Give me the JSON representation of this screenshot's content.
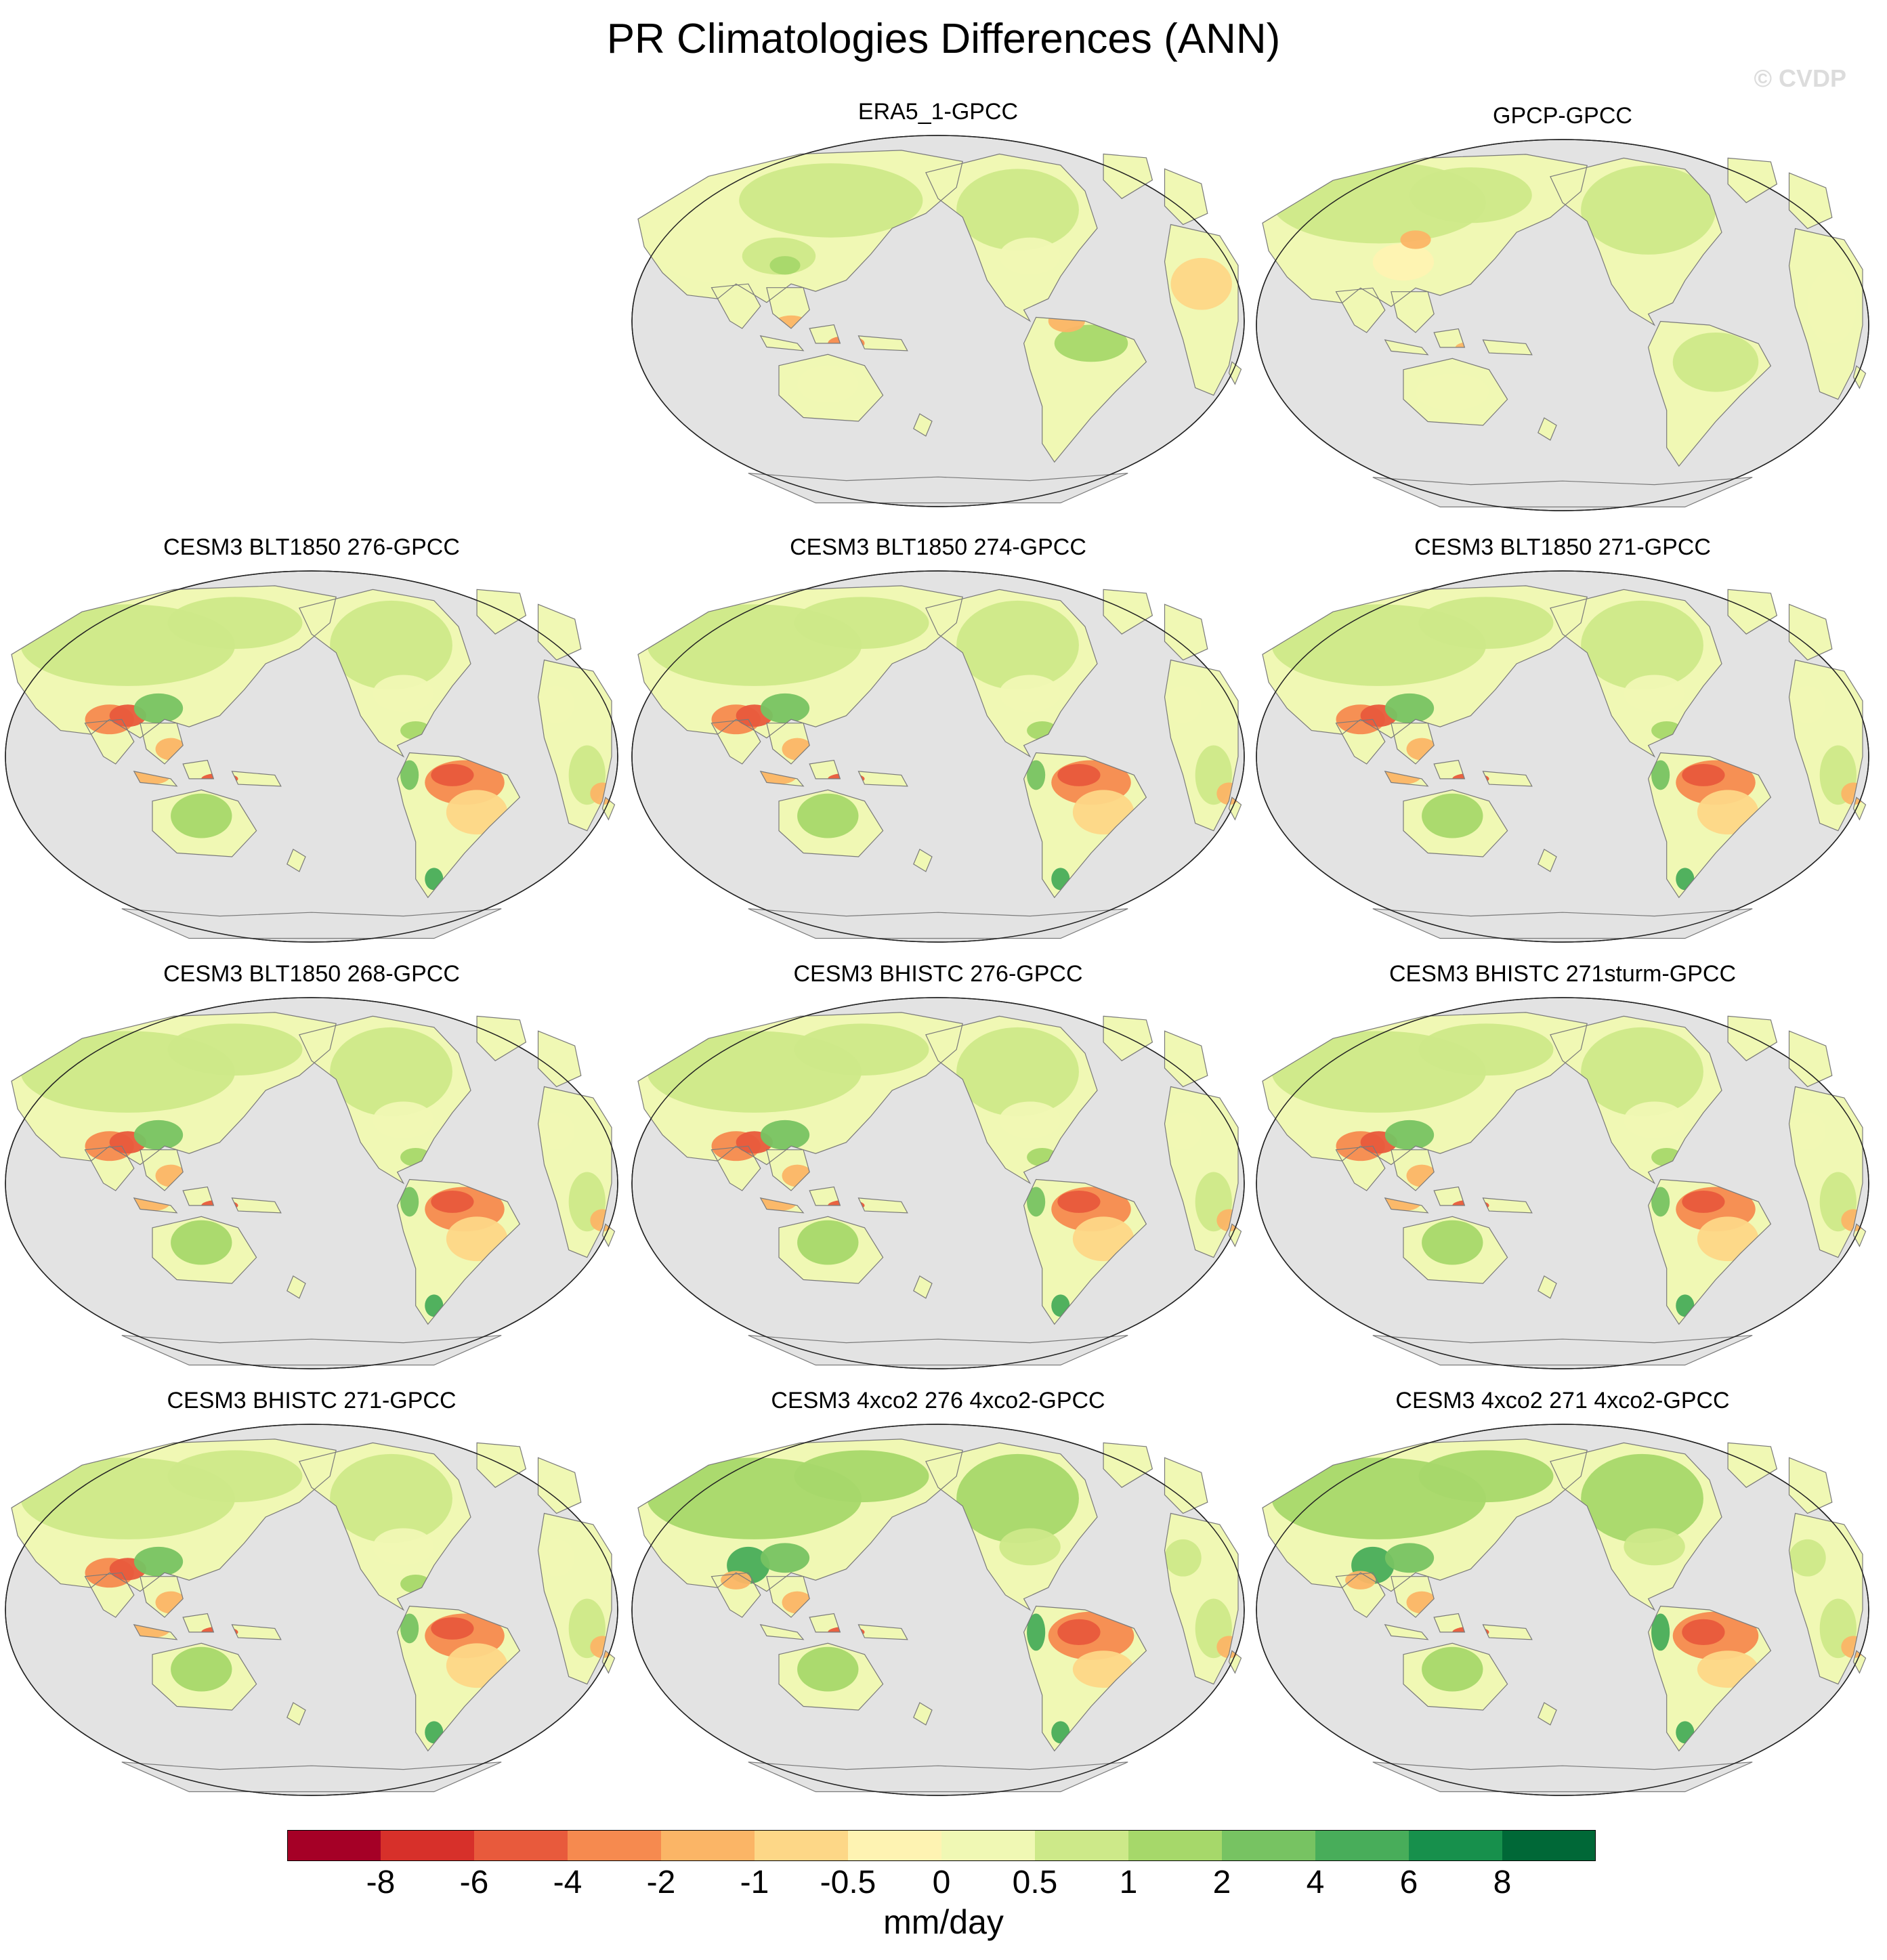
{
  "figure": {
    "title": "PR Climatologies Differences (ANN)",
    "watermark": "© CVDP"
  },
  "panels": [
    {
      "title": "ERA5_1-GPCC",
      "pattern": "era5"
    },
    {
      "title": "GPCP-GPCC",
      "pattern": "gpcp"
    },
    {
      "title": "CESM3 BLT1850 276-GPCC",
      "pattern": "model"
    },
    {
      "title": "CESM3 BLT1850 274-GPCC",
      "pattern": "model"
    },
    {
      "title": "CESM3 BLT1850 271-GPCC",
      "pattern": "model"
    },
    {
      "title": "CESM3 BLT1850 268-GPCC",
      "pattern": "model"
    },
    {
      "title": "CESM3 BHISTC 276-GPCC",
      "pattern": "model"
    },
    {
      "title": "CESM3 BHISTC 271sturm-GPCC",
      "pattern": "model"
    },
    {
      "title": "CESM3 BHISTC 271-GPCC",
      "pattern": "model"
    },
    {
      "title": "CESM3 4xco2 276 4xco2-GPCC",
      "pattern": "model4x"
    },
    {
      "title": "CESM3 4xco2 271 4xco2-GPCC",
      "pattern": "model4x"
    }
  ],
  "colorbar": {
    "unit": "mm/day",
    "tick_labels": [
      "-8",
      "-6",
      "-4",
      "-2",
      "-1",
      "-0.5",
      "0",
      "0.5",
      "1",
      "2",
      "4",
      "6",
      "8"
    ],
    "colors": [
      "#a50026",
      "#d7302a",
      "#e85a3c",
      "#f68a4f",
      "#fbb566",
      "#fdd787",
      "#fef3b2",
      "#f0f8b4",
      "#cde989",
      "#a6d86a",
      "#77c362",
      "#48ad5a",
      "#17904c",
      "#006837"
    ]
  },
  "map_colors": {
    "ocean": "#e3e3e3",
    "coast": "#7a7a7a"
  }
}
